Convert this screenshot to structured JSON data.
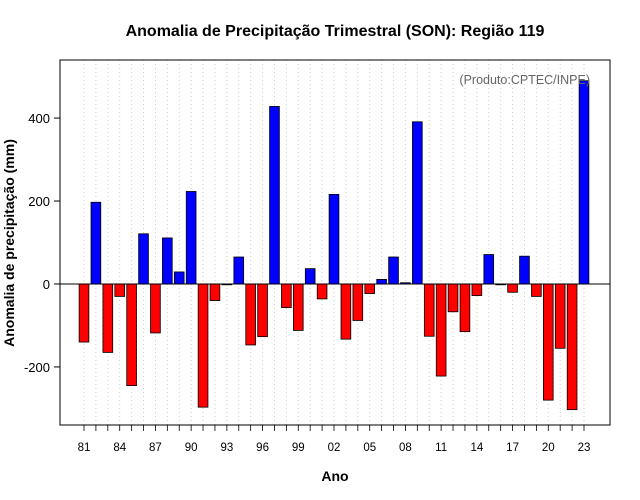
{
  "chart_data": {
    "type": "bar",
    "title": "Anomalia de Precipitação Trimestral (SON): Região 119",
    "xlabel": "Ano",
    "ylabel": "Anomalia de precipitação (mm)",
    "watermark": "(Produto:CPTEC/INPE)",
    "years": [
      1981,
      1982,
      1983,
      1984,
      1985,
      1986,
      1987,
      1988,
      1989,
      1990,
      1991,
      1992,
      1993,
      1994,
      1995,
      1996,
      1997,
      1998,
      1999,
      2000,
      2001,
      2002,
      2003,
      2004,
      2005,
      2006,
      2007,
      2008,
      2009,
      2010,
      2011,
      2012,
      2013,
      2014,
      2015,
      2016,
      2017,
      2018,
      2019,
      2020,
      2021,
      2022,
      2023
    ],
    "values": [
      -140,
      197,
      -165,
      -30,
      -245,
      121,
      -118,
      111,
      29,
      223,
      -297,
      -40,
      -2,
      65,
      -147,
      -127,
      428,
      -57,
      -112,
      37,
      -36,
      216,
      -133,
      -88,
      -23,
      11,
      65,
      3,
      391,
      -126,
      -222,
      -67,
      -115,
      -28,
      71,
      -2,
      -20,
      67,
      -30,
      -280,
      -155,
      -303,
      490
    ],
    "tick_labels": [
      "81",
      "84",
      "87",
      "90",
      "93",
      "96",
      "99",
      "02",
      "05",
      "08",
      "11",
      "14",
      "17",
      "20",
      "23"
    ],
    "tick_years": [
      1981,
      1984,
      1987,
      1990,
      1993,
      1996,
      1999,
      2002,
      2005,
      2008,
      2011,
      2014,
      2017,
      2020,
      2023
    ],
    "y_ticks": [
      -200,
      0,
      200,
      400
    ],
    "ylim": [
      -340,
      540
    ],
    "grid": "vertical dotted, one line per year",
    "colors": {
      "positive": "#0000ff",
      "negative": "#ff0000",
      "zero_line": "#000000",
      "grid": "#cccccc"
    }
  }
}
